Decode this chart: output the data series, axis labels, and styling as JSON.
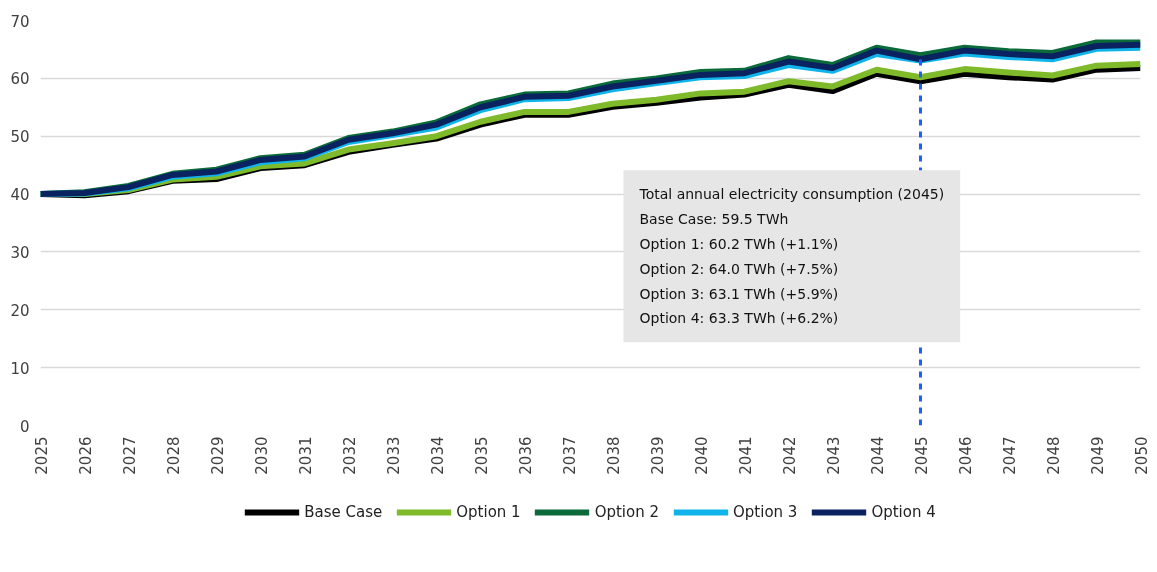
{
  "chart_data": {
    "type": "line",
    "x": [
      2025,
      2026,
      2027,
      2028,
      2029,
      2030,
      2031,
      2032,
      2033,
      2034,
      2035,
      2036,
      2037,
      2038,
      2039,
      2040,
      2041,
      2042,
      2043,
      2044,
      2045,
      2046,
      2047,
      2048,
      2049,
      2050
    ],
    "series": [
      {
        "name": "Base Case",
        "color": "#000000",
        "values": [
          40,
          39.8,
          40.5,
          42.3,
          42.6,
          44.5,
          45,
          47.3,
          48.5,
          49.6,
          52,
          53.7,
          53.7,
          55.1,
          55.8,
          56.7,
          57.2,
          58.9,
          57.8,
          60.8,
          59.5,
          60.8,
          60.2,
          59.8,
          61.5,
          61.8
        ]
      },
      {
        "name": "Option 1",
        "color": "#7fba2a",
        "values": [
          40,
          40,
          40.7,
          42.5,
          43,
          44.8,
          45.3,
          47.7,
          48.8,
          50,
          52.5,
          54.2,
          54.2,
          55.6,
          56.3,
          57.4,
          57.7,
          59.5,
          58.6,
          61.5,
          60.2,
          61.6,
          61,
          60.5,
          62.2,
          62.5
        ]
      },
      {
        "name": "Option 2",
        "color": "#0b6a3a",
        "values": [
          40,
          40.3,
          41.4,
          43.5,
          44.2,
          46.2,
          46.8,
          49.7,
          50.8,
          52.4,
          55.5,
          57.2,
          57.4,
          59.1,
          60,
          61.1,
          61.3,
          63.5,
          62.3,
          65.3,
          64,
          65.3,
          64.7,
          64.4,
          66.2,
          66.2
        ]
      },
      {
        "name": "Option 3",
        "color": "#10b4ea",
        "values": [
          40,
          40.1,
          41,
          43,
          43.6,
          45.5,
          46.2,
          49,
          50.2,
          51.5,
          54.5,
          56.4,
          56.6,
          58.1,
          59.2,
          60.2,
          60.4,
          62.3,
          61.3,
          64.2,
          63.1,
          64.3,
          63.7,
          63.3,
          65.1,
          65.3
        ]
      },
      {
        "name": "Option 4",
        "color": "#0a2360",
        "values": [
          40,
          40.2,
          41.2,
          43.3,
          43.9,
          45.9,
          46.5,
          49.4,
          50.5,
          52,
          55,
          56.8,
          57,
          58.6,
          59.6,
          60.6,
          60.9,
          62.9,
          61.8,
          64.8,
          63.3,
          64.8,
          64.2,
          63.8,
          65.6,
          65.8
        ]
      }
    ],
    "xlim": [
      2025,
      2050
    ],
    "xticks": [
      2025,
      2026,
      2027,
      2028,
      2029,
      2030,
      2031,
      2032,
      2033,
      2034,
      2035,
      2036,
      2037,
      2038,
      2039,
      2040,
      2041,
      2042,
      2043,
      2044,
      2045,
      2046,
      2047,
      2048,
      2049,
      2050
    ],
    "ylim": [
      0,
      70
    ],
    "yticks": [
      0,
      10,
      20,
      30,
      40,
      50,
      60,
      70
    ],
    "grid": "y",
    "legend": "bottom",
    "marker": "none",
    "line_style": "solid",
    "ref_lines": [
      {
        "axis": "x",
        "value": 2045,
        "color": "#1f5fff",
        "line_style": "dashed"
      }
    ],
    "annotations": [
      "Total annual electricity consumption (2045)\nBase Case: 59.5 TWh\nOption 1: 60.2 TWh (+1.1%)\nOption 2: 64.0 TWh (+7.5%)\nOption 3: 63.1 TWh (+5.9%)\nOption 4: 63.3 TWh (+6.2%)"
    ]
  }
}
